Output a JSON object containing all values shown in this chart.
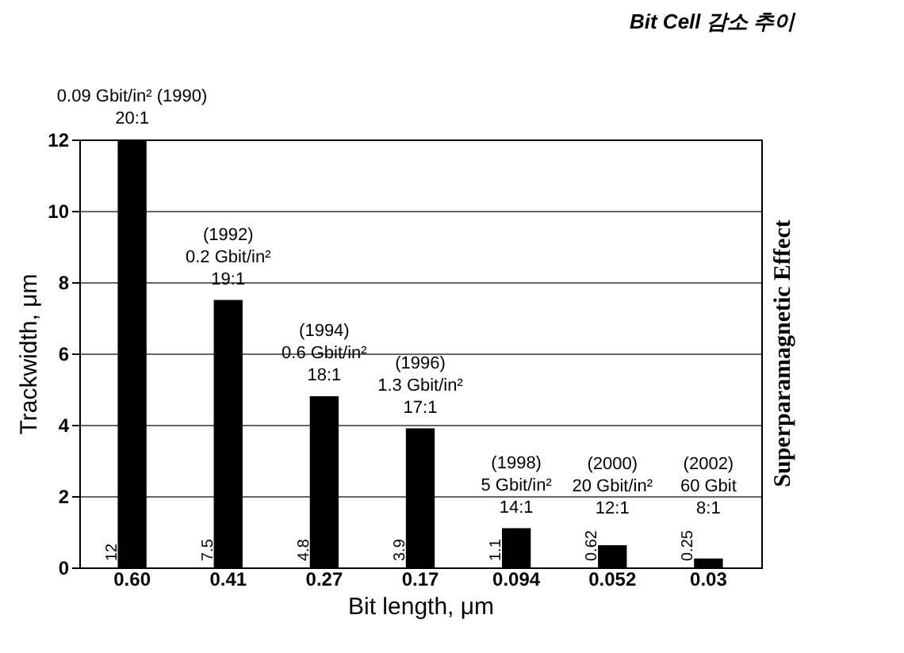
{
  "chart_data": {
    "type": "bar",
    "title": "Bit Cell 감소 추이",
    "xlabel": "Bit length, μm",
    "ylabel": "Trackwidth, μm",
    "categories": [
      "0.60",
      "0.41",
      "0.27",
      "0.17",
      "0.094",
      "0.052",
      "0.03"
    ],
    "values": [
      12,
      7.5,
      4.8,
      3.9,
      1.1,
      0.62,
      0.25
    ],
    "value_labels": [
      "12",
      "7.5",
      "4.8",
      "3.9",
      "1.1",
      "0.62",
      "0.25"
    ],
    "color": "#000000",
    "ylim": [
      0,
      12
    ],
    "yticks": [
      0,
      2,
      4,
      6,
      8,
      10,
      12
    ],
    "grid": "y",
    "annotations": [
      {
        "text": "0.09 Gbit/in²  (1990)\n20:1",
        "x": "0.60",
        "y": 12
      },
      {
        "text": "(1992)\n0.2 Gbit/in²\n19:1",
        "x": "0.41",
        "y": 7.5
      },
      {
        "text": "(1994)\n0.6 Gbit/in²\n18:1",
        "x": "0.27",
        "y": 4.8
      },
      {
        "text": "(1996)\n1.3 Gbit/in²\n17:1",
        "x": "0.17",
        "y": 3.9
      },
      {
        "text": "(1998)\n5 Gbit/in²\n14:1",
        "x": "0.094",
        "y": 1.1
      },
      {
        "text": "(2000)\n20 Gbit/in²\n12:1",
        "x": "0.052",
        "y": 0.62
      },
      {
        "text": "(2002)\n60 Gbit\n8:1",
        "x": "0.03",
        "y": 0.25
      },
      "Superparamagnetic Effect"
    ]
  }
}
